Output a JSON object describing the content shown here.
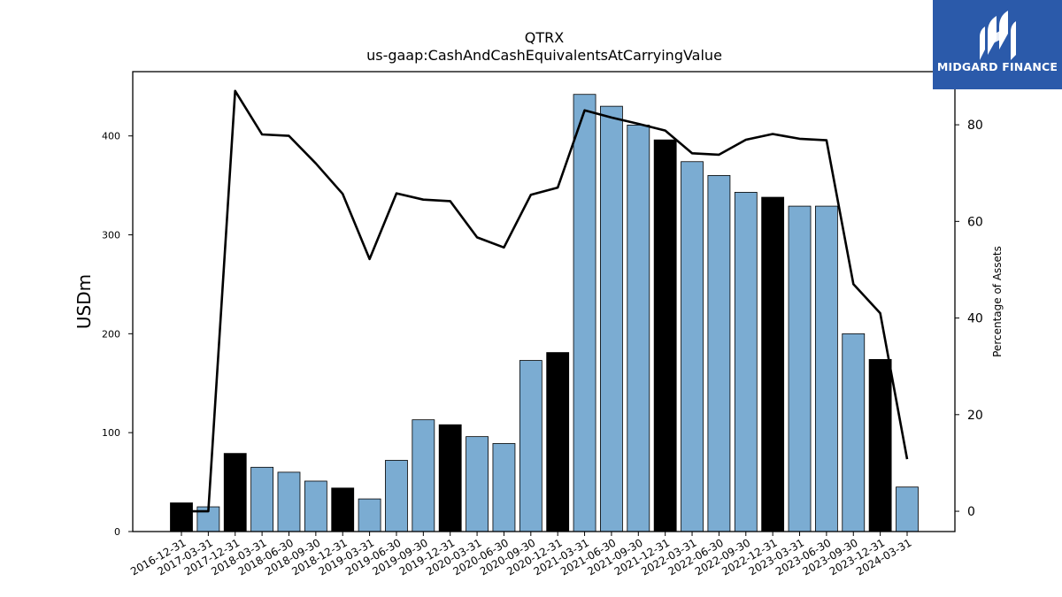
{
  "chart_data": {
    "type": "bar+line",
    "title": "QTRX",
    "subtitle": "us-gaap:CashAndCashEquivalentsAtCarryingValue",
    "ylabel": "USDm",
    "y2label": "Percentage of Assets",
    "ylim": [
      0,
      465
    ],
    "y2lim": [
      -4.2,
      91.0
    ],
    "yticks": [
      0,
      100,
      200,
      300,
      400
    ],
    "y2ticks": [
      0,
      20,
      40,
      60,
      80
    ],
    "categories": [
      "2016-12-31",
      "2017-03-31",
      "2017-12-31",
      "2018-03-31",
      "2018-06-30",
      "2018-09-30",
      "2018-12-31",
      "2019-03-31",
      "2019-06-30",
      "2019-09-30",
      "2019-12-31",
      "2020-03-31",
      "2020-06-30",
      "2020-09-30",
      "2020-12-31",
      "2021-03-31",
      "2021-06-30",
      "2021-09-30",
      "2021-12-31",
      "2022-03-31",
      "2022-06-30",
      "2022-09-30",
      "2022-12-31",
      "2023-03-31",
      "2023-06-30",
      "2023-09-30",
      "2023-12-31",
      "2024-03-31"
    ],
    "series": [
      {
        "kind": "bar",
        "values": [
          29,
          25,
          79,
          65,
          60,
          51,
          44,
          33,
          72,
          113,
          108,
          96,
          89,
          173,
          181,
          442,
          430,
          411,
          396,
          374,
          360,
          343,
          338,
          329,
          329,
          200,
          174,
          45
        ],
        "colors": [
          "#000000",
          "#7bacd2",
          "#000000",
          "#7bacd2",
          "#7bacd2",
          "#7bacd2",
          "#000000",
          "#7bacd2",
          "#7bacd2",
          "#7bacd2",
          "#000000",
          "#7bacd2",
          "#7bacd2",
          "#7bacd2",
          "#000000",
          "#7bacd2",
          "#7bacd2",
          "#7bacd2",
          "#000000",
          "#7bacd2",
          "#7bacd2",
          "#7bacd2",
          "#000000",
          "#7bacd2",
          "#7bacd2",
          "#7bacd2",
          "#000000",
          "#7bacd2"
        ]
      },
      {
        "kind": "line",
        "axis": "right",
        "color": "#000000",
        "values": [
          0,
          0,
          87,
          78,
          77.7,
          72,
          65.7,
          52.2,
          65.8,
          64.5,
          64.2,
          56.7,
          54.6,
          65.5,
          67,
          83,
          81.5,
          80.2,
          78.8,
          74.1,
          73.8,
          76.9,
          78.1,
          77.1,
          76.8,
          47,
          41,
          10.8
        ]
      }
    ]
  },
  "logo": {
    "text": "MIDGARD FINANCE",
    "background": "#2b5aaa"
  }
}
